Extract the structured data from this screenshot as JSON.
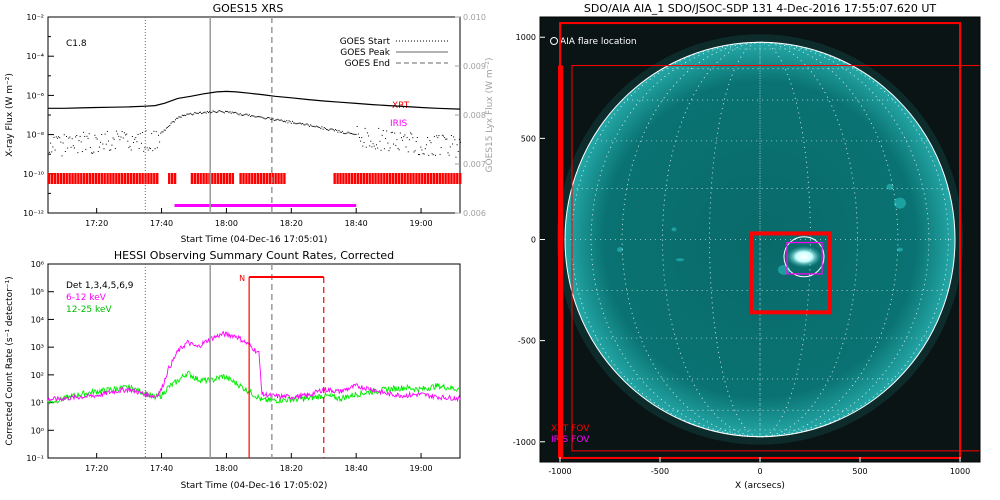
{
  "colors": {
    "goes_long": "#000000",
    "goes_short": "#000000",
    "xrt": "#ff0000",
    "iris": "#ff00ff",
    "hessi_low": "#ff00ff",
    "hessi_high": "#00ee00",
    "aia_disk": "#008b8b",
    "aia_bg": "#0b1414",
    "peak_line": "#9a9a9a"
  },
  "goes_panel": {
    "title": "GOES15 XRS",
    "flare_class": "C1.8",
    "xlabel": "Start Time (04-Dec-16 17:05:01)",
    "ylabel": "X-ray Flux (W m⁻²)",
    "ylabel_right": "GOES15 Lyx Flux (W m⁻²)",
    "legend": {
      "start": "GOES Start",
      "peak": "GOES Peak",
      "end": "GOES End"
    },
    "xrt_label": "XRT",
    "iris_label": "IRIS"
  },
  "hessi_panel": {
    "title": "HESSI Observing Summary Count Rates, Corrected",
    "xlabel": "Start Time (04-Dec-16 17:05:02)",
    "ylabel": "Corrected Count Rate (s⁻¹ detector⁻¹)",
    "legend": {
      "det": "Det 1,3,4,5,6,9",
      "low": "6-12 keV",
      "high": "12-25 keV"
    },
    "night_marker": "N"
  },
  "aia_panel": {
    "title": "SDO/AIA AIA_1 SDO/JSOC-SDP 131   4-Dec-2016 17:55:07.620 UT",
    "flare_label": "AIA flare location",
    "xlabel": "X (arcsecs)",
    "xrt_fov": "XRT FOV",
    "iris_fov": "IRIS FOV"
  },
  "chart_data": [
    {
      "type": "line",
      "title": "GOES15 XRS",
      "xlabel": "Start Time (04-Dec-16 17:05:01)",
      "ylabel": "X-ray Flux (W m⁻²)",
      "ylabel_right": "GOES15 Lyx Flux (W m⁻²)",
      "x_unit": "minutes after 17:05",
      "xlim": [
        0,
        127
      ],
      "ylim": [
        1e-12,
        0.01
      ],
      "yscale": "log",
      "ylim_right": [
        0.006,
        0.01
      ],
      "x_ticks": [
        "17:20",
        "17:40",
        "18:00",
        "18:20",
        "18:40",
        "19:00"
      ],
      "y_ticks": [
        "10⁻²",
        "10⁻⁴",
        "10⁻⁶",
        "10⁻⁸",
        "10⁻¹⁰",
        "10⁻¹²"
      ],
      "y_ticks_right": [
        "0.010",
        "0.009",
        "0.008",
        "0.007",
        "0.006"
      ],
      "goes_start": "17:35",
      "goes_peak": "17:55",
      "goes_end": "18:14",
      "series": [
        {
          "name": "",
          "style": "solid",
          "x": [
            0,
            5,
            10,
            15,
            20,
            25,
            30,
            33,
            36,
            40,
            44,
            48,
            52,
            55,
            58,
            62,
            66,
            70,
            75,
            80,
            85,
            90,
            95,
            100,
            105,
            110,
            115,
            120,
            127
          ],
          "y": [
            2.2e-07,
            2.2e-07,
            2.3e-07,
            2.4e-07,
            2.5e-07,
            2.6e-07,
            2.8e-07,
            3e-07,
            4e-07,
            7e-07,
            9e-07,
            1.2e-06,
            1.5e-06,
            1.6e-06,
            1.5e-06,
            1.3e-06,
            1.1e-06,
            9e-07,
            7.5e-07,
            6.2e-07,
            5.2e-07,
            4.5e-07,
            3.9e-07,
            3.4e-07,
            3e-07,
            2.7e-07,
            2.4e-07,
            2.2e-07,
            2e-07
          ]
        },
        {
          "name": "",
          "style": "dotted",
          "x": [
            0,
            5,
            10,
            15,
            20,
            25,
            30,
            33,
            36,
            40,
            44,
            48,
            52,
            55,
            58,
            62,
            66,
            70,
            75,
            80,
            85,
            90,
            95,
            100,
            105,
            110,
            115,
            120,
            127
          ],
          "y": [
            3e-09,
            3e-09,
            4e-09,
            4e-09,
            5e-09,
            5e-09,
            5e-09,
            6e-09,
            2e-08,
            8e-08,
            1.2e-07,
            1.5e-07,
            1.6e-07,
            1.5e-07,
            1.3e-07,
            1e-07,
            8e-08,
            6e-08,
            4.5e-08,
            3.2e-08,
            2.2e-08,
            1.5e-08,
            1e-08,
            7e-09,
            5e-09,
            4e-09,
            3e-09,
            3e-09,
            2.5e-09
          ]
        }
      ],
      "xrt_coverage_minutes": [
        [
          0,
          34
        ],
        [
          37,
          39
        ],
        [
          44,
          57
        ],
        [
          59,
          73
        ],
        [
          88,
          127
        ]
      ],
      "iris_coverage_minutes": [
        [
          39,
          95
        ]
      ]
    },
    {
      "type": "line",
      "title": "HESSI Observing Summary Count Rates, Corrected",
      "xlabel": "Start Time (04-Dec-16 17:05:02)",
      "ylabel": "Corrected Count Rate (s⁻¹ detector⁻¹)",
      "x_unit": "minutes after 17:05",
      "xlim": [
        0,
        127
      ],
      "ylim": [
        0.1,
        1000000
      ],
      "yscale": "log",
      "x_ticks": [
        "17:20",
        "17:40",
        "18:00",
        "18:20",
        "18:40",
        "19:00"
      ],
      "y_ticks": [
        "10⁶",
        "10⁵",
        "10⁴",
        "10³",
        "10²",
        "10¹",
        "10⁰",
        "10⁻¹"
      ],
      "night_start": "18:07",
      "night_end": "18:30",
      "series": [
        {
          "name": "6-12 keV",
          "x": [
            0,
            5,
            10,
            15,
            20,
            25,
            30,
            33,
            35,
            37,
            40,
            43,
            46,
            50,
            54,
            58,
            62,
            65,
            66,
            70,
            75,
            80,
            85,
            90,
            95,
            100,
            105,
            110,
            115,
            120,
            127
          ],
          "y": [
            13,
            14,
            16,
            18,
            25,
            30,
            20,
            16,
            30,
            150,
            700,
            1500,
            1000,
            2000,
            3000,
            2500,
            1200,
            600,
            20,
            17,
            16,
            18,
            30,
            25,
            40,
            30,
            20,
            18,
            20,
            16,
            14
          ]
        },
        {
          "name": "12-25 keV",
          "x": [
            0,
            5,
            10,
            15,
            20,
            25,
            30,
            33,
            35,
            37,
            40,
            43,
            46,
            50,
            54,
            58,
            62,
            65,
            66,
            70,
            75,
            80,
            85,
            90,
            95,
            100,
            105,
            110,
            115,
            120,
            127
          ],
          "y": [
            10,
            14,
            20,
            25,
            30,
            35,
            22,
            15,
            18,
            35,
            60,
            120,
            70,
            60,
            90,
            50,
            25,
            15,
            12,
            12,
            13,
            14,
            18,
            14,
            20,
            25,
            30,
            35,
            30,
            40,
            30
          ]
        }
      ]
    },
    {
      "type": "scatter",
      "title": "SDO/AIA AIA_1 SDO/JSOC-SDP 131   4-Dec-2016 17:55:07.620 UT",
      "xlabel": "X (arcsecs)",
      "ylabel": "",
      "xlim": [
        -1100,
        1100
      ],
      "ylim": [
        -1100,
        1100
      ],
      "x_ticks": [
        "-1000",
        "-500",
        "0",
        "500",
        "1000"
      ],
      "y_ticks": [
        "1000",
        "500",
        "0",
        "-500",
        "-1000"
      ],
      "solar_radius_arcsec": 975,
      "flare_location": [
        220,
        -85
      ],
      "xrt_fov_box": [
        [
          -1000,
          -1080
        ],
        [
          1000,
          1070
        ]
      ],
      "xrt_fov_box_2": [
        [
          -940,
          -1045
        ],
        [
          1100,
          860
        ]
      ],
      "xrt_zoom_box": [
        [
          -45,
          -360
        ],
        [
          350,
          30
        ]
      ],
      "iris_fov_box": [
        [
          135,
          -170
        ],
        [
          310,
          -15
        ]
      ]
    }
  ]
}
